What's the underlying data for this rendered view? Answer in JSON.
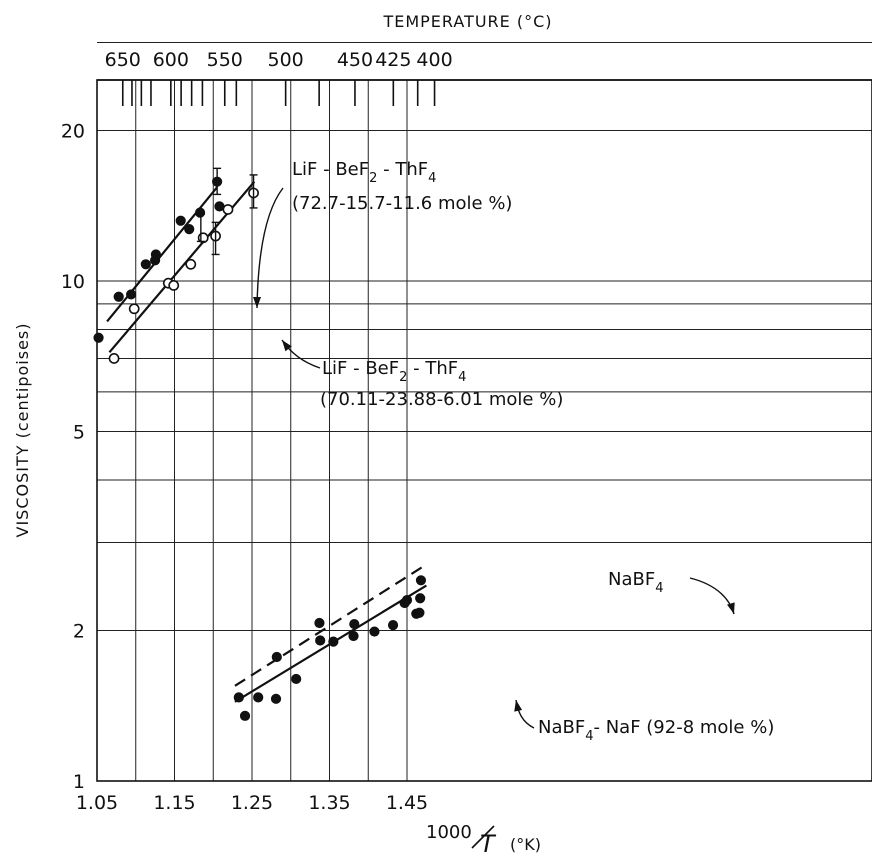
{
  "chart_data": {
    "type": "scatter",
    "scale": {
      "x": "linear",
      "y": "log"
    },
    "xlim": [
      1.05,
      1.49
    ],
    "ylim": [
      1,
      40
    ],
    "x_ticks": [
      1.05,
      1.15,
      1.25,
      1.35,
      1.45
    ],
    "x_tick_labels": [
      "1.05",
      "1.15",
      "1.25",
      "1.35",
      "1.45"
    ],
    "y_ticks": [
      1,
      2,
      5,
      10,
      20
    ],
    "y_tick_labels": [
      "1",
      "2",
      "5",
      "10",
      "20"
    ],
    "y_gridlines": [
      2,
      3,
      4,
      5,
      6,
      7,
      8,
      9,
      10,
      20,
      30
    ],
    "x_gridlines": [
      1.05,
      1.1,
      1.15,
      1.2,
      1.25,
      1.3,
      1.35,
      1.4,
      1.45
    ],
    "ylabel": "VISCOSITY (centipoises)",
    "xlabel": {
      "numerator": "1000",
      "denominator": "T",
      "unit": "(°K)"
    },
    "top_axis": {
      "title": "TEMPERATURE (°C)",
      "ticks": [
        {
          "label": "650",
          "celsius": 650
        },
        {
          "label": "",
          "celsius": 640
        },
        {
          "label": "",
          "celsius": 630
        },
        {
          "label": "",
          "celsius": 620
        },
        {
          "label": "600",
          "celsius": 600
        },
        {
          "label": "",
          "celsius": 590
        },
        {
          "label": "",
          "celsius": 580
        },
        {
          "label": "",
          "celsius": 570
        },
        {
          "label": "550",
          "celsius": 550
        },
        {
          "label": "",
          "celsius": 540
        },
        {
          "label": "500",
          "celsius": 500
        },
        {
          "label": "",
          "celsius": 475
        },
        {
          "label": "450",
          "celsius": 450
        },
        {
          "label": "425",
          "celsius": 425
        },
        {
          "label": "",
          "celsius": 410
        },
        {
          "label": "400",
          "celsius": 400
        }
      ]
    },
    "series": [
      {
        "name": "LiF - BeF2 - ThF4 (72.7-15.7-11.6 mole %)",
        "marker": "filled-circle",
        "line": "solid",
        "fit": [
          [
            1.063,
            8.3
          ],
          [
            1.205,
            15.4
          ]
        ],
        "x": [
          1.052,
          1.078,
          1.094,
          1.113,
          1.125,
          1.126,
          1.158,
          1.169,
          1.183,
          1.205,
          1.208
        ],
        "y": [
          7.7,
          9.3,
          9.4,
          10.8,
          11.0,
          11.3,
          13.2,
          12.7,
          13.7,
          15.8,
          14.1
        ]
      },
      {
        "name": "LiF - BeF2 - ThF4 (70.11-23.88-6.01 mole %)",
        "marker": "open-circle",
        "line": "solid",
        "fit": [
          [
            1.066,
            7.2
          ],
          [
            1.253,
            15.8
          ]
        ],
        "x": [
          1.072,
          1.098,
          1.142,
          1.149,
          1.171,
          1.187,
          1.203,
          1.219,
          1.252
        ],
        "y": [
          7.0,
          8.8,
          9.9,
          9.8,
          10.8,
          12.2,
          12.3,
          13.9,
          15.0
        ]
      },
      {
        "name": "NaBF4",
        "marker": "none",
        "line": "dashed",
        "fit": [
          [
            1.228,
            1.55
          ],
          [
            1.47,
            2.68
          ]
        ]
      },
      {
        "name": "NaBF4 - NaF (92-8 mole %)",
        "marker": "filled-circle",
        "line": "solid",
        "fit": [
          [
            1.228,
            1.44
          ],
          [
            1.475,
            2.46
          ]
        ],
        "x": [
          1.233,
          1.241,
          1.258,
          1.281,
          1.282,
          1.307,
          1.337,
          1.338,
          1.355,
          1.381,
          1.382,
          1.408,
          1.432,
          1.447,
          1.45,
          1.462,
          1.466,
          1.467,
          1.468
        ],
        "y": [
          1.47,
          1.35,
          1.47,
          1.46,
          1.77,
          1.6,
          2.07,
          1.91,
          1.9,
          1.95,
          2.06,
          1.99,
          2.05,
          2.27,
          2.3,
          2.16,
          2.17,
          2.32,
          2.52
        ]
      }
    ],
    "annotations": [
      {
        "id": "ann1",
        "line1": "LiF - BeF",
        "sub1": "2",
        "mid1": " - ThF",
        "sub1b": "4",
        "line2": "(72.7-15.7-11.6 mole %)"
      },
      {
        "id": "ann2",
        "line1": "LiF - BeF",
        "sub1": "2",
        "mid1": " - ThF",
        "sub1b": "4",
        "line2": "(70.11-23.88-6.01 mole %)"
      },
      {
        "id": "ann3",
        "line1": "NaBF",
        "sub1": "4"
      },
      {
        "id": "ann4",
        "line1": "NaBF",
        "sub1": "4",
        "mid1": "- NaF (92-8 mole %)"
      }
    ],
    "grid": true,
    "legend": "none"
  }
}
